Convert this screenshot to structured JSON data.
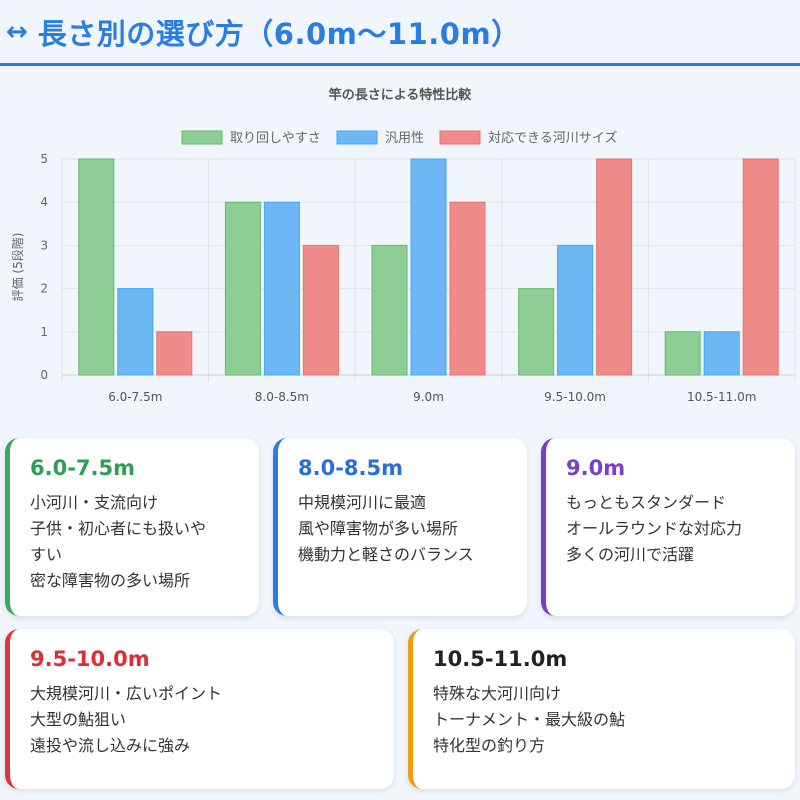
{
  "header": {
    "icon": "left-right-arrow-icon",
    "title": "長さ別の選び方（6.0m〜11.0m）"
  },
  "chart_data": {
    "type": "bar",
    "title": "竿の長さによる特性比較",
    "ylabel": "評価 (5段階)",
    "xlabel": "",
    "categories": [
      "6.0-7.5m",
      "8.0-8.5m",
      "9.0m",
      "9.5-10.0m",
      "10.5-11.0m"
    ],
    "ylim": [
      0,
      5
    ],
    "yticks": [
      "0",
      "1",
      "2",
      "3",
      "4",
      "5"
    ],
    "legend_position": "top",
    "grid": true,
    "series": [
      {
        "name": "取り回しやすさ",
        "values": [
          5,
          4,
          3,
          2,
          1
        ],
        "color": "#8dce95",
        "border": "#66bb6a"
      },
      {
        "name": "汎用性",
        "values": [
          2,
          4,
          5,
          3,
          1
        ],
        "color": "#6db7f5",
        "border": "#42a5f5"
      },
      {
        "name": "対応できる河川サイズ",
        "values": [
          1,
          3,
          4,
          5,
          5
        ],
        "color": "#ef8b88",
        "border": "#e57373"
      }
    ]
  },
  "cards": [
    {
      "title": "6.0-7.5m",
      "accent": "#3aaa5c",
      "title_color": "#2e9e56",
      "lines": [
        "小河川・支流向け",
        "子供・初心者にも扱いや",
        "すい",
        "密な障害物の多い場所"
      ]
    },
    {
      "title": "8.0-8.5m",
      "accent": "#2a7de1",
      "title_color": "#2a6fd6",
      "lines": [
        "中規模河川に最適",
        "風や障害物が多い場所",
        "機動力と軽さのバランス"
      ]
    },
    {
      "title": "9.0m",
      "accent": "#7b3fc4",
      "title_color": "#7b3fc4",
      "lines": [
        "もっともスタンダード",
        "オールラウンドな対応力",
        "多くの河川で活躍"
      ]
    },
    {
      "title": "9.5-10.0m",
      "accent": "#e0353a",
      "title_color": "#d93036",
      "lines": [
        "大規模河川・広いポイント",
        "大型の鮎狙い",
        "遠投や流し込みに強み"
      ]
    },
    {
      "title": "10.5-11.0m",
      "accent": "#f39c12",
      "title_color": "#222",
      "lines": [
        "特殊な大河川向け",
        "トーナメント・最大級の鮎",
        "特化型の釣り方"
      ]
    }
  ]
}
